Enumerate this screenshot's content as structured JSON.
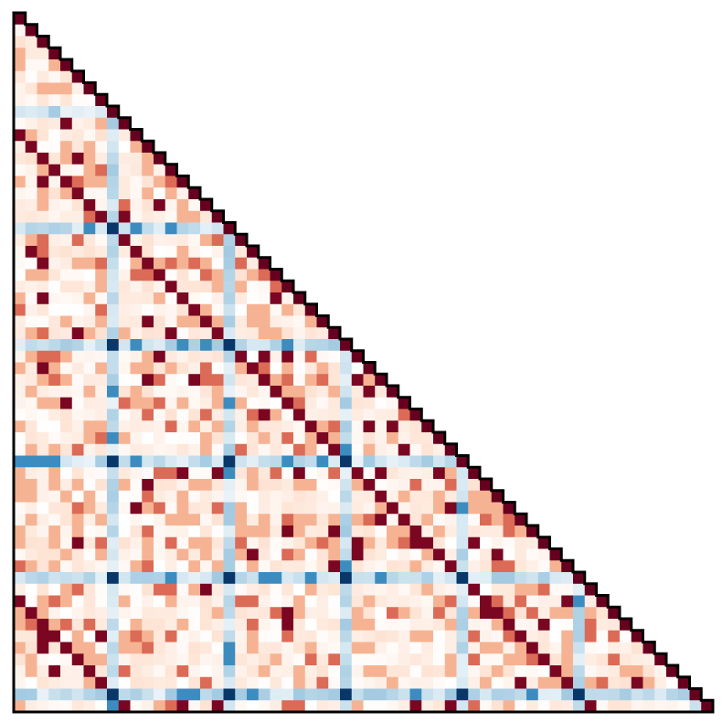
{
  "chart_data": {
    "type": "heatmap",
    "shape": "lower-triangle",
    "size": 60,
    "title": "",
    "xlabel": "",
    "ylabel": "",
    "colormap": "RdBu_r",
    "value_range": [
      -1,
      1
    ],
    "axis_ticks": false,
    "colors": {
      "strong_positive": "#67000d",
      "positive": "#ef3b2c",
      "weak_positive": "#fee0d2",
      "neutral": "#fff5f0",
      "weak_negative": "#deebf7",
      "negative": "#4292c6",
      "strong_negative": "#08306b",
      "outline": "#000000"
    },
    "band_rows": [
      8,
      18,
      28,
      38,
      48,
      58
    ],
    "band_values": [
      -0.12,
      -0.35,
      -0.95
    ],
    "hot_lags": [
      2,
      3,
      4,
      5,
      6,
      7
    ],
    "value_levels": [
      0.08,
      0.25,
      0.55,
      0.95
    ],
    "diagonal_value": 1.0
  }
}
